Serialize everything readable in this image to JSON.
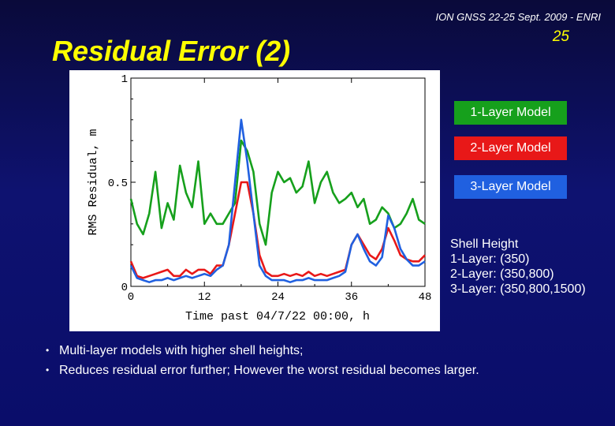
{
  "header": {
    "conference": "ION GNSS 22-25 Sept. 2009 - ENRI",
    "page_number": "25",
    "title": "Residual Error (2)"
  },
  "legend": {
    "items": [
      {
        "label": "1-Layer Model",
        "color": "#16a01c"
      },
      {
        "label": "2-Layer Model",
        "color": "#e81818"
      },
      {
        "label": "3-Layer Model",
        "color": "#2060e0"
      }
    ]
  },
  "shell_height": {
    "heading": "Shell Height",
    "lines": [
      "1-Layer: (350)",
      "2-Layer: (350,800)",
      "3-Layer: (350,800,1500)"
    ]
  },
  "bullets": [
    "Multi-layer models with higher shell heights;",
    "Reduces residual error further; However the worst residual becomes larger."
  ],
  "chart_data": {
    "type": "line",
    "xlabel": "Time past 04/7/22 00:00, h",
    "ylabel": "RMS Residual, m",
    "xlim": [
      0,
      48
    ],
    "ylim": [
      0,
      1
    ],
    "xticks": [
      "0",
      "12",
      "24",
      "36",
      "48"
    ],
    "yticks": [
      "0",
      "0.5",
      "1"
    ],
    "grid": false,
    "x": [
      0,
      1,
      2,
      3,
      4,
      5,
      6,
      7,
      8,
      9,
      10,
      11,
      12,
      13,
      14,
      15,
      16,
      17,
      18,
      19,
      20,
      21,
      22,
      23,
      24,
      25,
      26,
      27,
      28,
      29,
      30,
      31,
      32,
      33,
      34,
      35,
      36,
      37,
      38,
      39,
      40,
      41,
      42,
      43,
      44,
      45,
      46,
      47,
      48
    ],
    "series": [
      {
        "color": "#16a01c",
        "values": [
          0.42,
          0.3,
          0.25,
          0.35,
          0.55,
          0.28,
          0.4,
          0.32,
          0.58,
          0.45,
          0.38,
          0.6,
          0.3,
          0.35,
          0.3,
          0.3,
          0.35,
          0.4,
          0.7,
          0.65,
          0.55,
          0.3,
          0.2,
          0.45,
          0.55,
          0.5,
          0.52,
          0.45,
          0.48,
          0.6,
          0.4,
          0.5,
          0.55,
          0.45,
          0.4,
          0.42,
          0.45,
          0.38,
          0.42,
          0.3,
          0.32,
          0.38,
          0.35,
          0.28,
          0.3,
          0.35,
          0.42,
          0.32,
          0.3
        ]
      },
      {
        "color": "#e81818",
        "values": [
          0.12,
          0.05,
          0.04,
          0.05,
          0.06,
          0.07,
          0.08,
          0.05,
          0.05,
          0.08,
          0.06,
          0.08,
          0.08,
          0.06,
          0.1,
          0.1,
          0.2,
          0.35,
          0.5,
          0.5,
          0.35,
          0.15,
          0.07,
          0.05,
          0.05,
          0.06,
          0.05,
          0.06,
          0.05,
          0.07,
          0.05,
          0.06,
          0.05,
          0.06,
          0.07,
          0.08,
          0.2,
          0.25,
          0.2,
          0.15,
          0.13,
          0.18,
          0.28,
          0.22,
          0.15,
          0.13,
          0.12,
          0.12,
          0.15
        ]
      },
      {
        "color": "#2060e0",
        "values": [
          0.1,
          0.04,
          0.03,
          0.02,
          0.03,
          0.03,
          0.04,
          0.03,
          0.04,
          0.05,
          0.04,
          0.05,
          0.06,
          0.05,
          0.08,
          0.1,
          0.2,
          0.5,
          0.8,
          0.6,
          0.35,
          0.1,
          0.05,
          0.03,
          0.03,
          0.03,
          0.02,
          0.03,
          0.03,
          0.04,
          0.03,
          0.03,
          0.03,
          0.04,
          0.05,
          0.07,
          0.2,
          0.25,
          0.18,
          0.12,
          0.1,
          0.14,
          0.34,
          0.28,
          0.18,
          0.13,
          0.1,
          0.1,
          0.12
        ]
      }
    ]
  }
}
